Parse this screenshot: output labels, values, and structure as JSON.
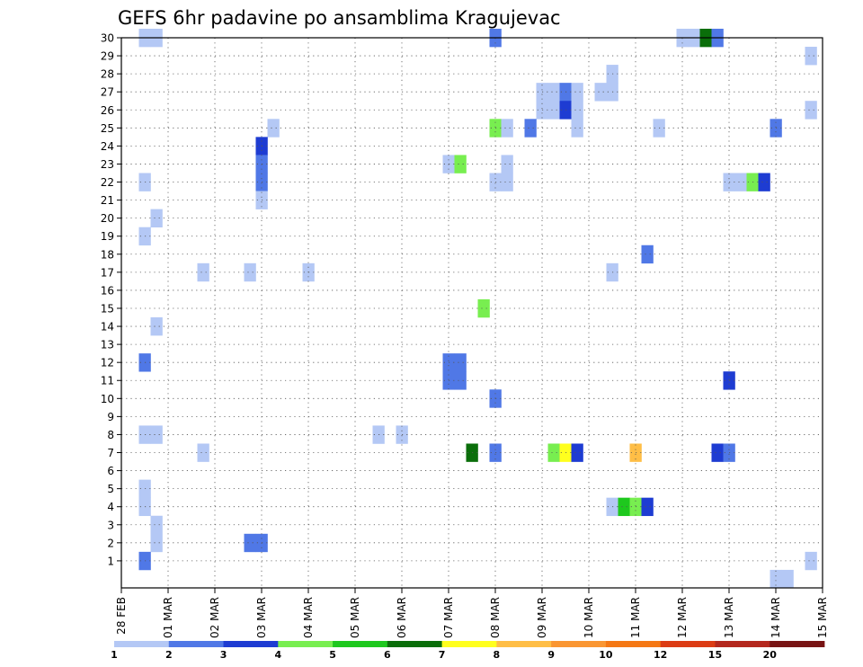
{
  "chart_data": {
    "type": "heatmap",
    "title": "GEFS 6hr padavine po ansamblima Kragujevac",
    "xlabel": "",
    "ylabel": "",
    "x_ticks": [
      "28 FEB",
      "01 MAR",
      "02 MAR",
      "03 MAR",
      "04 MAR",
      "05 MAR",
      "06 MAR",
      "07 MAR",
      "08 MAR",
      "09 MAR",
      "10 MAR",
      "11 MAR",
      "12 MAR",
      "13 MAR",
      "14 MAR",
      "15 MAR"
    ],
    "y_ticks": [
      "1",
      "2",
      "3",
      "4",
      "5",
      "6",
      "7",
      "8",
      "9",
      "10",
      "11",
      "12",
      "13",
      "14",
      "15",
      "16",
      "17",
      "18",
      "19",
      "20",
      "21",
      "22",
      "23",
      "24",
      "25",
      "26",
      "27",
      "28",
      "29",
      "30"
    ],
    "xlim_days": [
      0,
      15
    ],
    "ylim": [
      0,
      30
    ],
    "grid": true,
    "time_step": "6hr",
    "legend": {
      "placement": "bottom",
      "labels": [
        "1",
        "2",
        "3",
        "4",
        "5",
        "6",
        "7",
        "8",
        "9",
        "10",
        "12",
        "15",
        "20"
      ],
      "colors": [
        "#b4c8f5",
        "#5078e6",
        "#1e3cd2",
        "#78ee50",
        "#1ec81e",
        "#0a6e0a",
        "#ffff1e",
        "#ffbe46",
        "#fa9632",
        "#f57814",
        "#dc3c14",
        "#b4281e",
        "#781414"
      ]
    },
    "cells": [
      {
        "t": 0.5,
        "m": 30,
        "v": 1.5
      },
      {
        "t": 0.75,
        "m": 30,
        "v": 1.5
      },
      {
        "t": 8.0,
        "m": 30,
        "v": 2.5
      },
      {
        "t": 12.0,
        "m": 30,
        "v": 1.5
      },
      {
        "t": 12.25,
        "m": 30,
        "v": 1.5
      },
      {
        "t": 12.5,
        "m": 30,
        "v": 6.5
      },
      {
        "t": 12.75,
        "m": 30,
        "v": 2.5
      },
      {
        "t": 14.75,
        "m": 29,
        "v": 1.5
      },
      {
        "t": 10.5,
        "m": 28,
        "v": 1.5
      },
      {
        "t": 9.0,
        "m": 27,
        "v": 1.5
      },
      {
        "t": 9.25,
        "m": 27,
        "v": 1.5
      },
      {
        "t": 9.5,
        "m": 27,
        "v": 2.5
      },
      {
        "t": 9.75,
        "m": 27,
        "v": 1.5
      },
      {
        "t": 10.25,
        "m": 27,
        "v": 1.5
      },
      {
        "t": 10.5,
        "m": 27,
        "v": 1.5
      },
      {
        "t": 9.0,
        "m": 26,
        "v": 1.5
      },
      {
        "t": 9.25,
        "m": 26,
        "v": 1.5
      },
      {
        "t": 9.5,
        "m": 26,
        "v": 3.5
      },
      {
        "t": 9.75,
        "m": 26,
        "v": 1.5
      },
      {
        "t": 14.75,
        "m": 26,
        "v": 1.5
      },
      {
        "t": 3.25,
        "m": 25,
        "v": 1.5
      },
      {
        "t": 8.0,
        "m": 25,
        "v": 4.5
      },
      {
        "t": 8.25,
        "m": 25,
        "v": 1.5
      },
      {
        "t": 8.75,
        "m": 25,
        "v": 2.5
      },
      {
        "t": 9.75,
        "m": 25,
        "v": 1.5
      },
      {
        "t": 11.5,
        "m": 25,
        "v": 1.5
      },
      {
        "t": 14.0,
        "m": 25,
        "v": 2.5
      },
      {
        "t": 3.0,
        "m": 24,
        "v": 3.5
      },
      {
        "t": 3.0,
        "m": 23,
        "v": 2.5
      },
      {
        "t": 7.0,
        "m": 23,
        "v": 1.5
      },
      {
        "t": 7.25,
        "m": 23,
        "v": 4.5
      },
      {
        "t": 8.25,
        "m": 23,
        "v": 1.5
      },
      {
        "t": 0.5,
        "m": 22,
        "v": 1.5
      },
      {
        "t": 3.0,
        "m": 22,
        "v": 2.5
      },
      {
        "t": 8.0,
        "m": 22,
        "v": 1.5
      },
      {
        "t": 8.25,
        "m": 22,
        "v": 1.5
      },
      {
        "t": 13.0,
        "m": 22,
        "v": 1.5
      },
      {
        "t": 13.25,
        "m": 22,
        "v": 1.5
      },
      {
        "t": 13.5,
        "m": 22,
        "v": 4.5
      },
      {
        "t": 13.75,
        "m": 22,
        "v": 3.5
      },
      {
        "t": 3.0,
        "m": 21,
        "v": 1.5
      },
      {
        "t": 0.75,
        "m": 20,
        "v": 1.5
      },
      {
        "t": 0.5,
        "m": 19,
        "v": 1.5
      },
      {
        "t": 11.25,
        "m": 18,
        "v": 2.5
      },
      {
        "t": 1.75,
        "m": 17,
        "v": 1.5
      },
      {
        "t": 2.75,
        "m": 17,
        "v": 1.5
      },
      {
        "t": 4.0,
        "m": 17,
        "v": 1.5
      },
      {
        "t": 10.5,
        "m": 17,
        "v": 1.5
      },
      {
        "t": 7.75,
        "m": 15,
        "v": 4.5
      },
      {
        "t": 0.75,
        "m": 14,
        "v": 1.5
      },
      {
        "t": 0.5,
        "m": 12,
        "v": 2.5
      },
      {
        "t": 7.0,
        "m": 12,
        "v": 2.5
      },
      {
        "t": 7.25,
        "m": 12,
        "v": 2.5
      },
      {
        "t": 7.0,
        "m": 11,
        "v": 2.5
      },
      {
        "t": 7.25,
        "m": 11,
        "v": 2.5
      },
      {
        "t": 13.0,
        "m": 11,
        "v": 3.5
      },
      {
        "t": 8.0,
        "m": 10,
        "v": 2.5
      },
      {
        "t": 0.5,
        "m": 8,
        "v": 1.5
      },
      {
        "t": 0.75,
        "m": 8,
        "v": 1.5
      },
      {
        "t": 5.5,
        "m": 8,
        "v": 1.5
      },
      {
        "t": 6.0,
        "m": 8,
        "v": 1.5
      },
      {
        "t": 1.75,
        "m": 7,
        "v": 1.5
      },
      {
        "t": 7.5,
        "m": 7,
        "v": 6.5
      },
      {
        "t": 8.0,
        "m": 7,
        "v": 2.5
      },
      {
        "t": 9.25,
        "m": 7,
        "v": 4.5
      },
      {
        "t": 9.5,
        "m": 7,
        "v": 7.5
      },
      {
        "t": 9.75,
        "m": 7,
        "v": 3.5
      },
      {
        "t": 11.0,
        "m": 7,
        "v": 8.5
      },
      {
        "t": 12.75,
        "m": 7,
        "v": 3.5
      },
      {
        "t": 13.0,
        "m": 7,
        "v": 2.5
      },
      {
        "t": 0.5,
        "m": 5,
        "v": 1.5
      },
      {
        "t": 0.5,
        "m": 4,
        "v": 1.5
      },
      {
        "t": 10.5,
        "m": 4,
        "v": 1.5
      },
      {
        "t": 10.75,
        "m": 4,
        "v": 5.5
      },
      {
        "t": 11.0,
        "m": 4,
        "v": 4.5
      },
      {
        "t": 11.25,
        "m": 4,
        "v": 3.5
      },
      {
        "t": 0.75,
        "m": 3,
        "v": 1.5
      },
      {
        "t": 0.75,
        "m": 2,
        "v": 1.5
      },
      {
        "t": 2.75,
        "m": 2,
        "v": 2.5
      },
      {
        "t": 3.0,
        "m": 2,
        "v": 2.5
      },
      {
        "t": 0.5,
        "m": 1,
        "v": 2.5
      },
      {
        "t": 14.75,
        "m": 1,
        "v": 1.5
      },
      {
        "t": 14.0,
        "m": 0,
        "v": 1.5
      },
      {
        "t": 14.25,
        "m": 0,
        "v": 1.5
      }
    ]
  }
}
